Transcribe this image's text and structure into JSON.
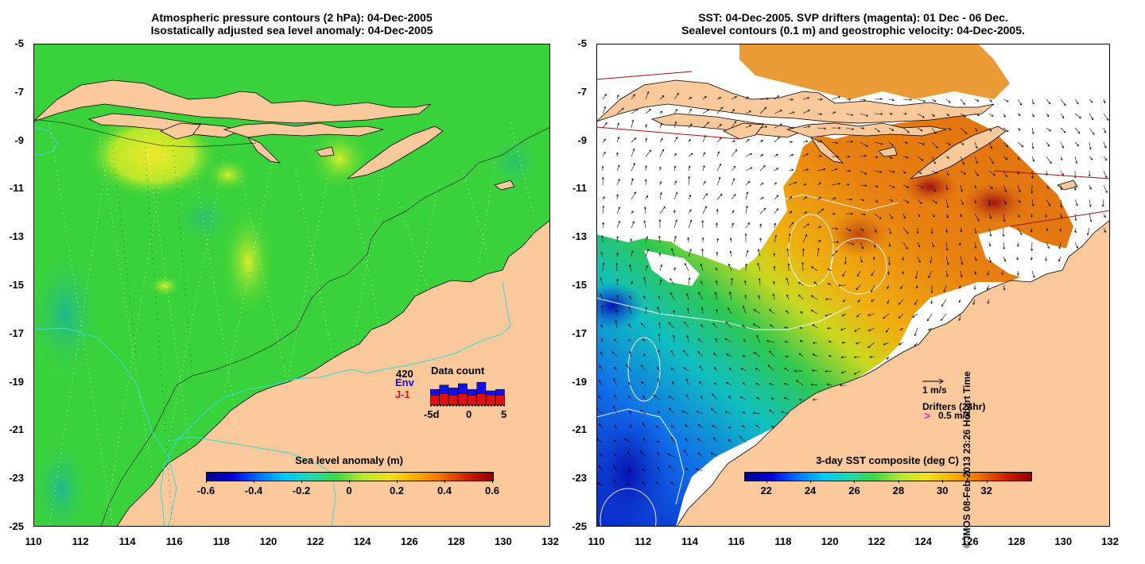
{
  "left_panel": {
    "title_line1": "Atmospheric pressure contours (2 hPa): 04-Dec-2005",
    "title_line2": "Isostatically adjusted sea level anomaly: 04-Dec-2005",
    "colorbar": {
      "title": "Sea level anomaly (m)",
      "ticks": [
        "-0.6",
        "-0.4",
        "-0.2",
        "0",
        "0.2",
        "0.4",
        "0.6"
      ]
    },
    "data_count": {
      "title": "Data count",
      "max_label": "420",
      "env_label": "Env",
      "j1_label": "J-1",
      "x_labels": [
        "-5d",
        "0",
        "5"
      ],
      "env_color": "#1010ee",
      "j1_color": "#e01010"
    }
  },
  "right_panel": {
    "title_line1": "SST: 04-Dec-2005. SVP drifters (magenta): 01 Dec - 06 Dec.",
    "title_line2": "Sealevel contours (0.1 m) and geostrophic velocity: 04-Dec-2005.",
    "colorbar": {
      "title": "3-day SST composite (deg C)",
      "ticks": [
        "22",
        "24",
        "26",
        "28",
        "30",
        "32"
      ]
    },
    "velocity_legend": "1 m/s",
    "drifter_legend_title": "Drifters (24hr)",
    "drifter_legend_value": "0.5 m/s",
    "drifter_symbol": ">"
  },
  "axes": {
    "y_ticks": [
      "-5",
      "-7",
      "-9",
      "-11",
      "-13",
      "-15",
      "-17",
      "-19",
      "-21",
      "-23",
      "-25"
    ],
    "x_ticks": [
      "110",
      "112",
      "114",
      "116",
      "118",
      "120",
      "122",
      "124",
      "126",
      "128",
      "130",
      "132"
    ]
  },
  "map_data": {
    "lon_range": [
      110,
      132
    ],
    "lat_range": [
      -25,
      -5
    ],
    "land_color": "#f9c89b",
    "ocean_color_left": "#3cd43c",
    "sst_colormap_range": [
      21,
      34
    ]
  },
  "copyright": "© IMOS 08-Feb-2013 23:26 Hobart Time"
}
